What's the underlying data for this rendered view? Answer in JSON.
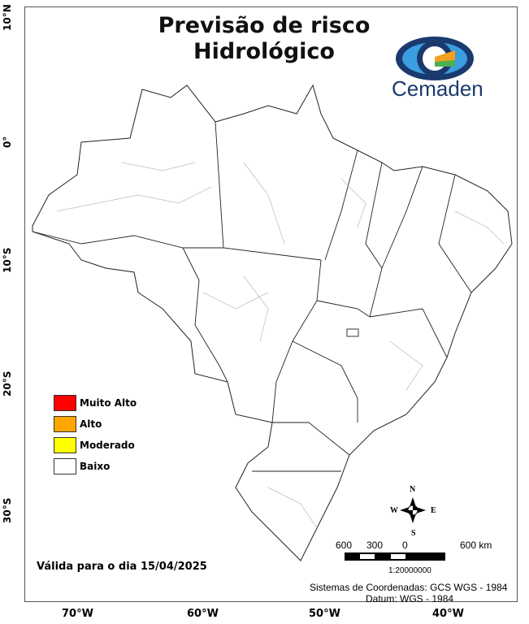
{
  "title_line1": "Previsão de risco",
  "title_line2": "Hidrológico",
  "logo": {
    "text": "Cemaden",
    "colors": [
      "#1a3a6e",
      "#3a9ee0",
      "#f4a020",
      "#4caf50"
    ]
  },
  "legend": [
    {
      "label": "Muito Alto",
      "color": "#ff0000"
    },
    {
      "label": "Alto",
      "color": "#ffa500"
    },
    {
      "label": "Moderado",
      "color": "#ffff00"
    },
    {
      "label": "Baixo",
      "color": "#ffffff"
    }
  ],
  "lat_labels": [
    "10°N",
    "0°",
    "10°S",
    "20°S",
    "30°S"
  ],
  "lon_labels": [
    "70°W",
    "60°W",
    "50°W",
    "40°W"
  ],
  "valid_text": "Válida para o dia 15/04/2025",
  "compass": {
    "n": "N",
    "s": "S",
    "e": "E",
    "w": "W"
  },
  "scale": {
    "labels": [
      "600",
      "300",
      "0",
      "600 km"
    ],
    "ratio": "1:20000000"
  },
  "crs": "Sistemas de Coordenadas: GCS WGS - 1984",
  "datum": "Datum: WGS - 1984"
}
